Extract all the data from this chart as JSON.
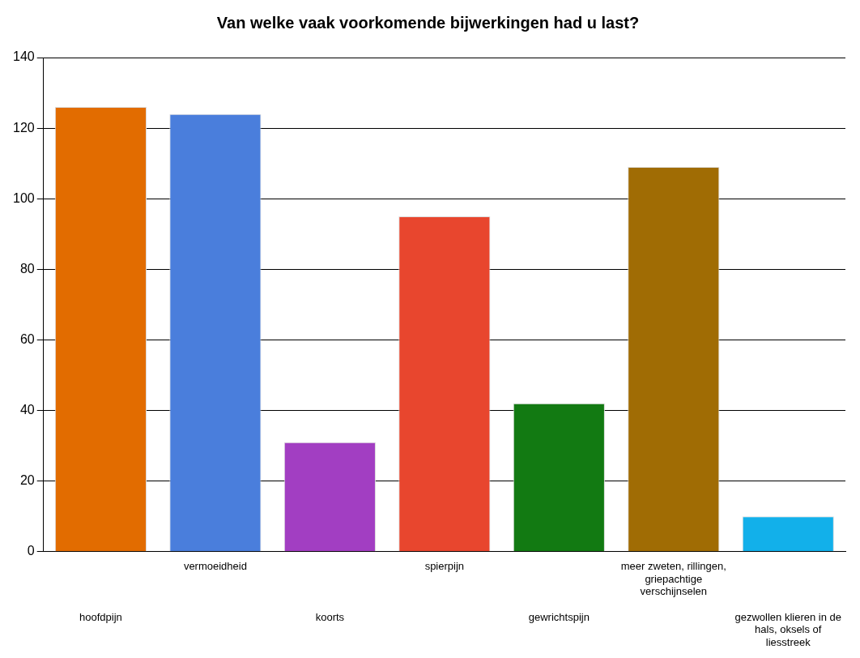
{
  "chart_data": {
    "type": "bar",
    "title": "Van welke vaak voorkomende bijwerkingen had u last?",
    "categories": [
      "hoofdpijn",
      "vermoeidheid",
      "koorts",
      "spierpijn",
      "gewrichtspijn",
      "meer zweten, rillingen, griepachtige verschijnselen",
      "gezwollen klieren in de hals, oksels of liesstreek"
    ],
    "values": [
      126,
      124,
      31,
      95,
      42,
      109,
      10
    ],
    "colors": [
      "#e26c00",
      "#4a7edc",
      "#a23ec2",
      "#e8462e",
      "#127a12",
      "#a06c04",
      "#12b0ea"
    ],
    "ylim": [
      0,
      140
    ],
    "yticks": [
      0,
      20,
      40,
      60,
      80,
      100,
      120,
      140
    ],
    "grid": "y",
    "legend": false
  }
}
